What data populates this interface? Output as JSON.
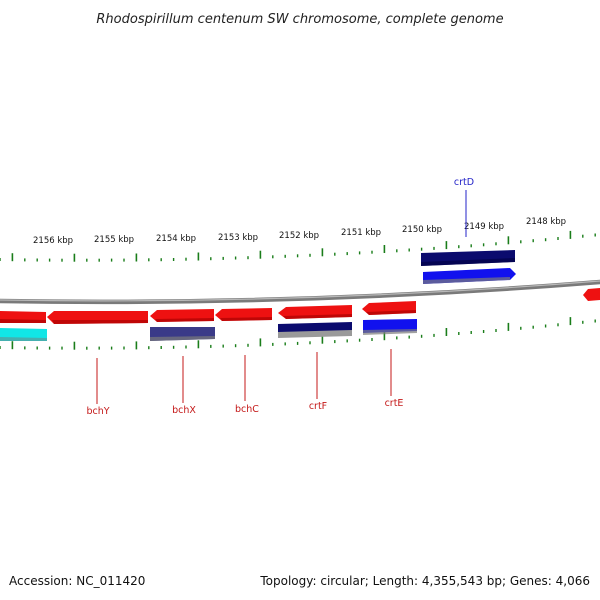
{
  "title": "Rhodospirillum centenum SW chromosome, complete genome",
  "footer": {
    "accession": "Accession: NC_011420",
    "summary": "Topology: circular; Length: 4,355,543 bp; Genes: 4,066"
  },
  "colors": {
    "tick": "#1a7d1a",
    "backbone": "#7a7a7a",
    "label_dark": "#c41818",
    "label_blue": "#2323c8",
    "gene_red": "#ee1111",
    "gene_navy": "#0b0b6e",
    "gene_blue": "#1111ee",
    "gene_slate": "#3a3a88",
    "gene_cyan": "#11e6e6"
  },
  "kbp_labels": [
    "2156 kbp",
    "2155 kbp",
    "2154 kbp",
    "2153 kbp",
    "2152 kbp",
    "2151 kbp",
    "2150 kbp",
    "2149 kbp",
    "2148 kbp"
  ],
  "genes": [
    {
      "label": "crtD",
      "color": "gene_navy",
      "label_color": "label_blue"
    },
    {
      "label": "bchY",
      "color": "gene_red",
      "label_color": "label_dark"
    },
    {
      "label": "bchX",
      "color": "gene_red",
      "label_color": "label_dark"
    },
    {
      "label": "bchC",
      "color": "gene_red",
      "label_color": "label_dark"
    },
    {
      "label": "crtF",
      "color": "gene_red",
      "label_color": "label_dark"
    },
    {
      "label": "crtE",
      "color": "gene_red",
      "label_color": "label_dark"
    }
  ]
}
